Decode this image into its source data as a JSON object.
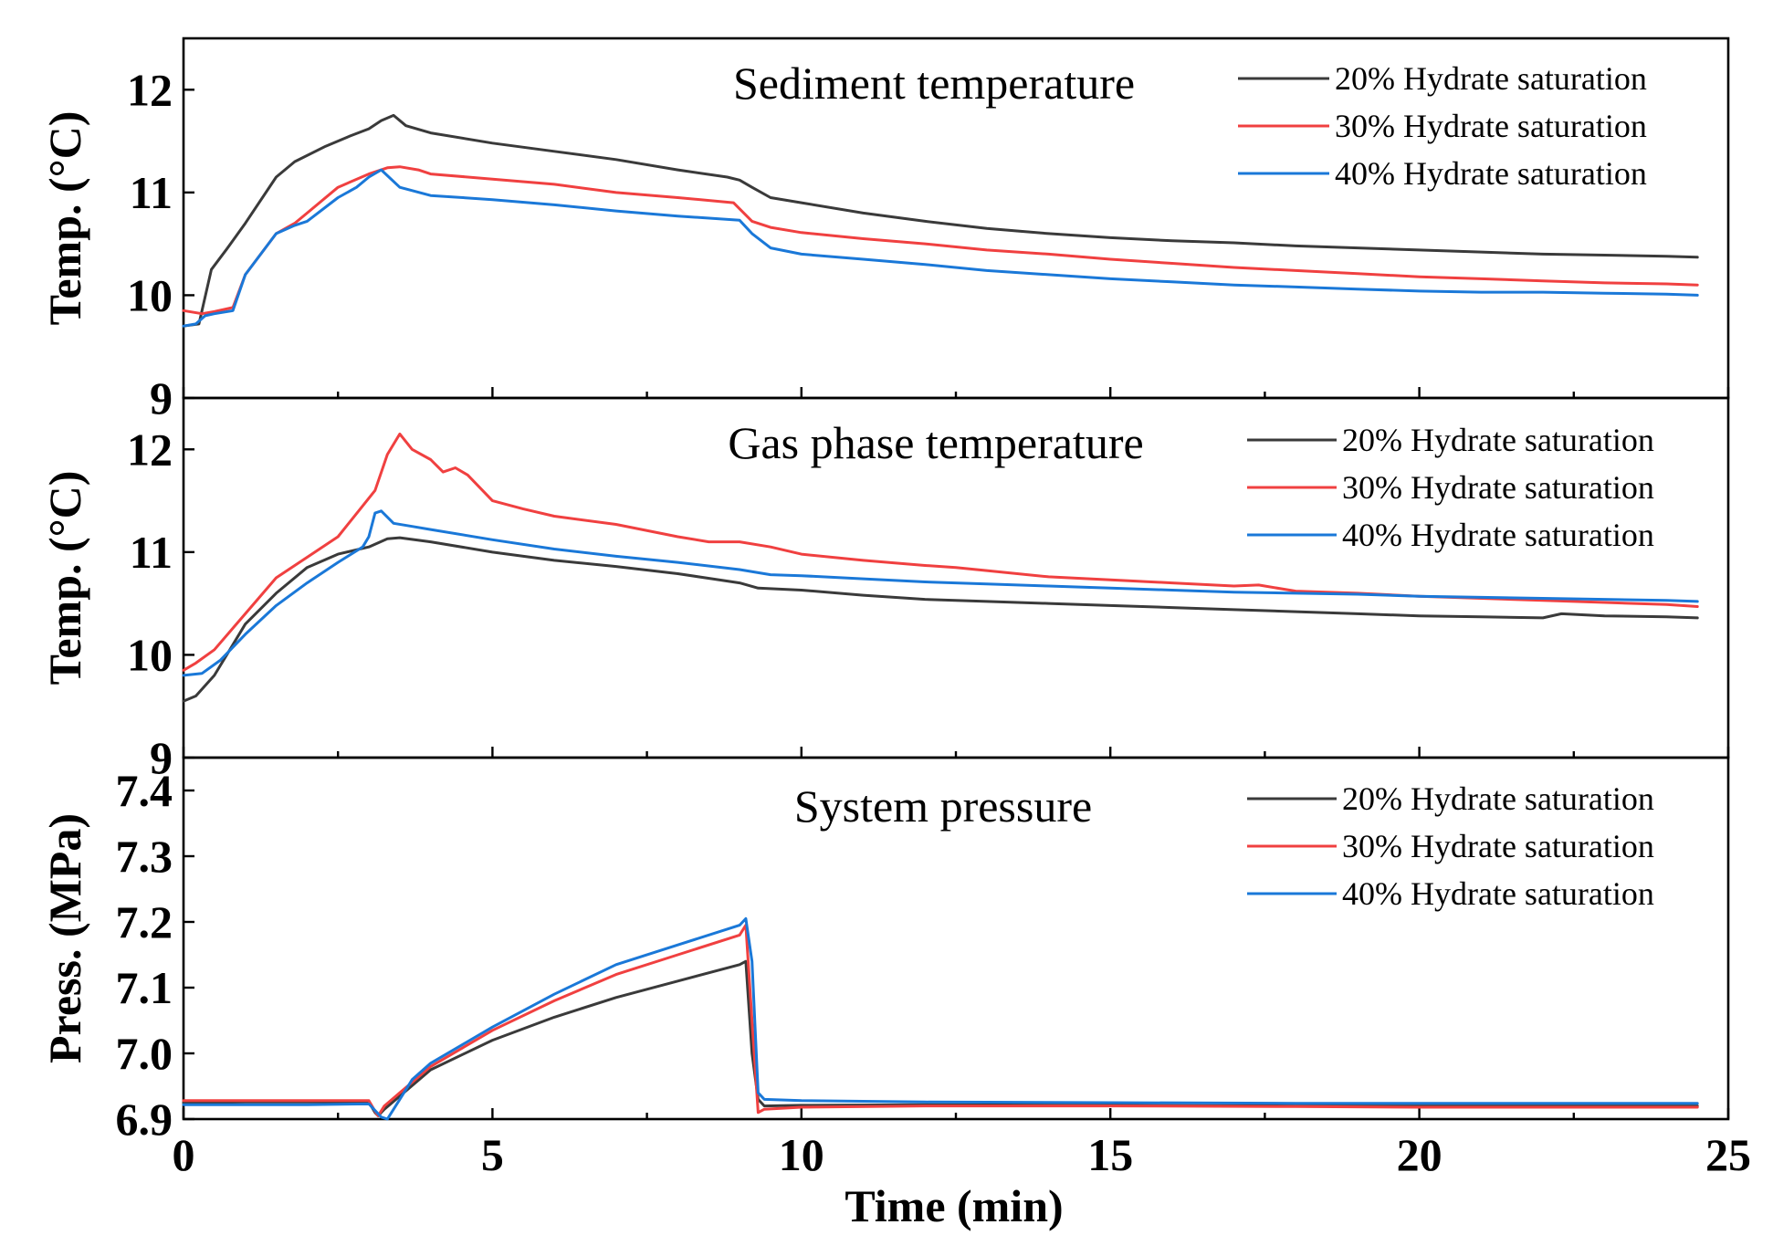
{
  "chart_data": [
    {
      "type": "line",
      "title": "Sediment temperature",
      "ylabel": "Temp. (°C)",
      "xlabel": "",
      "xlim": [
        0,
        25
      ],
      "ylim": [
        9,
        12.5
      ],
      "x_ticks": [
        0,
        5,
        10,
        15,
        20,
        25
      ],
      "y_ticks": [
        "9",
        "10",
        "11",
        "12"
      ],
      "legend_position": "top-right",
      "series": [
        {
          "name": "20% Hydrate saturation",
          "color": "#3a3a3a",
          "x": [
            0,
            0.25,
            0.45,
            0.7,
            1.0,
            1.5,
            1.8,
            2.3,
            2.7,
            3.0,
            3.2,
            3.4,
            3.6,
            4.0,
            5.0,
            6.0,
            7.0,
            8.0,
            8.8,
            9.0,
            9.2,
            9.5,
            10.0,
            11.0,
            12.0,
            13.0,
            14.0,
            15.0,
            16.0,
            17.0,
            18.0,
            19.0,
            20.0,
            21.0,
            22.0,
            23.0,
            24.0,
            24.5
          ],
          "y": [
            9.7,
            9.72,
            10.25,
            10.45,
            10.7,
            11.15,
            11.3,
            11.45,
            11.55,
            11.62,
            11.7,
            11.75,
            11.65,
            11.58,
            11.48,
            11.4,
            11.32,
            11.22,
            11.15,
            11.12,
            11.05,
            10.95,
            10.9,
            10.8,
            10.72,
            10.65,
            10.6,
            10.56,
            10.53,
            10.51,
            10.48,
            10.46,
            10.44,
            10.42,
            10.4,
            10.39,
            10.38,
            10.37
          ]
        },
        {
          "name": "30% Hydrate saturation",
          "color": "#f04040",
          "x": [
            0,
            0.3,
            0.5,
            0.8,
            1.0,
            1.5,
            1.8,
            2.0,
            2.5,
            3.0,
            3.3,
            3.5,
            3.8,
            4.0,
            5.0,
            6.0,
            7.0,
            8.0,
            8.9,
            9.2,
            9.5,
            10.0,
            11.0,
            12.0,
            13.0,
            14.0,
            15.0,
            16.0,
            17.0,
            18.0,
            19.0,
            20.0,
            21.0,
            22.0,
            23.0,
            24.0,
            24.5
          ],
          "y": [
            9.85,
            9.82,
            9.84,
            9.88,
            10.2,
            10.6,
            10.7,
            10.8,
            11.05,
            11.18,
            11.24,
            11.25,
            11.22,
            11.18,
            11.13,
            11.08,
            11.0,
            10.95,
            10.9,
            10.72,
            10.66,
            10.61,
            10.55,
            10.5,
            10.44,
            10.4,
            10.35,
            10.31,
            10.27,
            10.24,
            10.21,
            10.18,
            10.16,
            10.14,
            10.12,
            10.11,
            10.1
          ]
        },
        {
          "name": "40% Hydrate saturation",
          "color": "#1a78d8",
          "x": [
            0,
            0.2,
            0.35,
            0.5,
            0.8,
            1.0,
            1.5,
            1.8,
            2.0,
            2.5,
            2.8,
            3.0,
            3.2,
            3.5,
            4.0,
            5.0,
            6.0,
            7.0,
            8.0,
            9.0,
            9.2,
            9.5,
            10.0,
            11.0,
            12.0,
            13.0,
            14.0,
            15.0,
            16.0,
            17.0,
            18.0,
            19.0,
            20.0,
            21.0,
            22.0,
            23.0,
            24.0,
            24.5
          ],
          "y": [
            9.7,
            9.72,
            9.8,
            9.82,
            9.85,
            10.2,
            10.6,
            10.68,
            10.72,
            10.95,
            11.05,
            11.15,
            11.22,
            11.05,
            10.97,
            10.93,
            10.88,
            10.82,
            10.77,
            10.73,
            10.6,
            10.46,
            10.4,
            10.35,
            10.3,
            10.24,
            10.2,
            10.16,
            10.13,
            10.1,
            10.08,
            10.06,
            10.04,
            10.03,
            10.03,
            10.02,
            10.01,
            10.0
          ]
        }
      ]
    },
    {
      "type": "line",
      "title": "Gas phase temperature",
      "ylabel": "Temp. (°C)",
      "xlabel": "",
      "xlim": [
        0,
        25
      ],
      "ylim": [
        9,
        12.5
      ],
      "x_ticks": [
        0,
        5,
        10,
        15,
        20,
        25
      ],
      "y_ticks": [
        "9",
        "10",
        "11",
        "12"
      ],
      "legend_position": "top-right",
      "series": [
        {
          "name": "20% Hydrate saturation",
          "color": "#3a3a3a",
          "x": [
            0,
            0.2,
            0.5,
            1.0,
            1.5,
            2.0,
            2.5,
            3.0,
            3.3,
            3.5,
            4.0,
            5.0,
            6.0,
            7.0,
            8.0,
            9.0,
            9.3,
            10.0,
            11.0,
            12.0,
            13.0,
            14.0,
            15.0,
            16.0,
            17.0,
            18.0,
            19.0,
            20.0,
            21.0,
            22.0,
            22.3,
            23.0,
            24.0,
            24.5
          ],
          "y": [
            9.55,
            9.6,
            9.8,
            10.3,
            10.6,
            10.85,
            10.98,
            11.05,
            11.13,
            11.14,
            11.1,
            11.0,
            10.92,
            10.86,
            10.79,
            10.7,
            10.65,
            10.63,
            10.58,
            10.54,
            10.52,
            10.5,
            10.48,
            10.46,
            10.44,
            10.42,
            10.4,
            10.38,
            10.37,
            10.36,
            10.4,
            10.38,
            10.37,
            10.36
          ]
        },
        {
          "name": "30% Hydrate saturation",
          "color": "#f04040",
          "x": [
            0,
            0.2,
            0.5,
            1.0,
            1.5,
            2.0,
            2.5,
            2.9,
            3.1,
            3.3,
            3.5,
            3.7,
            4.0,
            4.2,
            4.4,
            4.6,
            5.0,
            5.5,
            6.0,
            7.0,
            8.0,
            8.5,
            9.0,
            9.5,
            10.0,
            11.0,
            12.0,
            12.5,
            13.0,
            14.0,
            15.0,
            16.0,
            17.0,
            17.4,
            18.0,
            19.0,
            20.0,
            21.0,
            22.0,
            23.0,
            24.0,
            24.5
          ],
          "y": [
            9.85,
            9.92,
            10.05,
            10.4,
            10.75,
            10.95,
            11.15,
            11.45,
            11.6,
            11.95,
            12.15,
            12.0,
            11.9,
            11.78,
            11.82,
            11.75,
            11.5,
            11.42,
            11.35,
            11.27,
            11.15,
            11.1,
            11.1,
            11.05,
            10.98,
            10.92,
            10.87,
            10.85,
            10.82,
            10.76,
            10.73,
            10.7,
            10.67,
            10.68,
            10.62,
            10.6,
            10.57,
            10.55,
            10.53,
            10.51,
            10.49,
            10.47
          ]
        },
        {
          "name": "40% Hydrate saturation",
          "color": "#1a78d8",
          "x": [
            0,
            0.3,
            0.6,
            1.0,
            1.5,
            2.0,
            2.5,
            2.9,
            3.0,
            3.1,
            3.2,
            3.4,
            3.7,
            4.0,
            5.0,
            6.0,
            7.0,
            8.0,
            9.0,
            9.3,
            9.5,
            10.0,
            11.0,
            12.0,
            13.0,
            14.0,
            15.0,
            16.0,
            17.0,
            18.0,
            19.0,
            20.0,
            21.0,
            22.0,
            23.0,
            24.0,
            24.5
          ],
          "y": [
            9.8,
            9.82,
            9.95,
            10.2,
            10.48,
            10.7,
            10.9,
            11.05,
            11.15,
            11.38,
            11.4,
            11.28,
            11.25,
            11.22,
            11.12,
            11.03,
            10.96,
            10.9,
            10.83,
            10.8,
            10.78,
            10.77,
            10.74,
            10.71,
            10.69,
            10.67,
            10.65,
            10.63,
            10.61,
            10.6,
            10.59,
            10.57,
            10.56,
            10.55,
            10.54,
            10.53,
            10.52
          ]
        }
      ]
    },
    {
      "type": "line",
      "title": "System pressure",
      "ylabel": "Press. (MPa)",
      "xlabel": "Time (min)",
      "xlim": [
        0,
        25
      ],
      "ylim": [
        6.9,
        7.45
      ],
      "x_ticks": [
        0,
        5,
        10,
        15,
        20,
        25
      ],
      "y_ticks": [
        "6.9",
        "7.0",
        "7.1",
        "7.2",
        "7.3",
        "7.4"
      ],
      "legend_position": "top-right",
      "series": [
        {
          "name": "20% Hydrate saturation",
          "color": "#3a3a3a",
          "x": [
            0,
            1.0,
            2.0,
            3.0,
            3.1,
            3.15,
            3.25,
            3.5,
            4.0,
            5.0,
            6.0,
            7.0,
            8.0,
            9.0,
            9.1,
            9.2,
            9.3,
            9.4,
            10.0,
            12.0,
            15.0,
            18.0,
            20.0,
            22.0,
            24.5
          ],
          "y": [
            6.925,
            6.926,
            6.926,
            6.926,
            6.91,
            6.905,
            6.915,
            6.935,
            6.975,
            7.02,
            7.055,
            7.085,
            7.11,
            7.135,
            7.14,
            7.0,
            6.93,
            6.92,
            6.921,
            6.922,
            6.921,
            6.92,
            6.92,
            6.92,
            6.92
          ]
        },
        {
          "name": "30% Hydrate saturation",
          "color": "#f04040",
          "x": [
            0,
            1.0,
            2.0,
            3.0,
            3.1,
            3.15,
            3.25,
            3.5,
            4.0,
            5.0,
            6.0,
            7.0,
            8.0,
            9.0,
            9.1,
            9.2,
            9.3,
            9.4,
            10.0,
            12.0,
            15.0,
            18.0,
            20.0,
            22.0,
            24.5
          ],
          "y": [
            6.928,
            6.928,
            6.928,
            6.928,
            6.912,
            6.905,
            6.92,
            6.94,
            6.98,
            7.035,
            7.08,
            7.12,
            7.15,
            7.18,
            7.195,
            7.05,
            6.91,
            6.915,
            6.918,
            6.92,
            6.92,
            6.919,
            6.918,
            6.918,
            6.918
          ]
        },
        {
          "name": "40% Hydrate saturation",
          "color": "#1a78d8",
          "x": [
            0,
            1.0,
            2.0,
            3.0,
            3.2,
            3.3,
            3.5,
            3.7,
            4.0,
            5.0,
            6.0,
            7.0,
            8.0,
            9.0,
            9.1,
            9.2,
            9.3,
            9.4,
            10.0,
            12.0,
            15.0,
            18.0,
            20.0,
            22.0,
            24.5
          ],
          "y": [
            6.922,
            6.922,
            6.922,
            6.923,
            6.903,
            6.9,
            6.93,
            6.96,
            6.985,
            7.04,
            7.09,
            7.135,
            7.165,
            7.195,
            7.205,
            7.14,
            6.94,
            6.93,
            6.928,
            6.926,
            6.925,
            6.924,
            6.924,
            6.924,
            6.924
          ]
        }
      ]
    }
  ]
}
